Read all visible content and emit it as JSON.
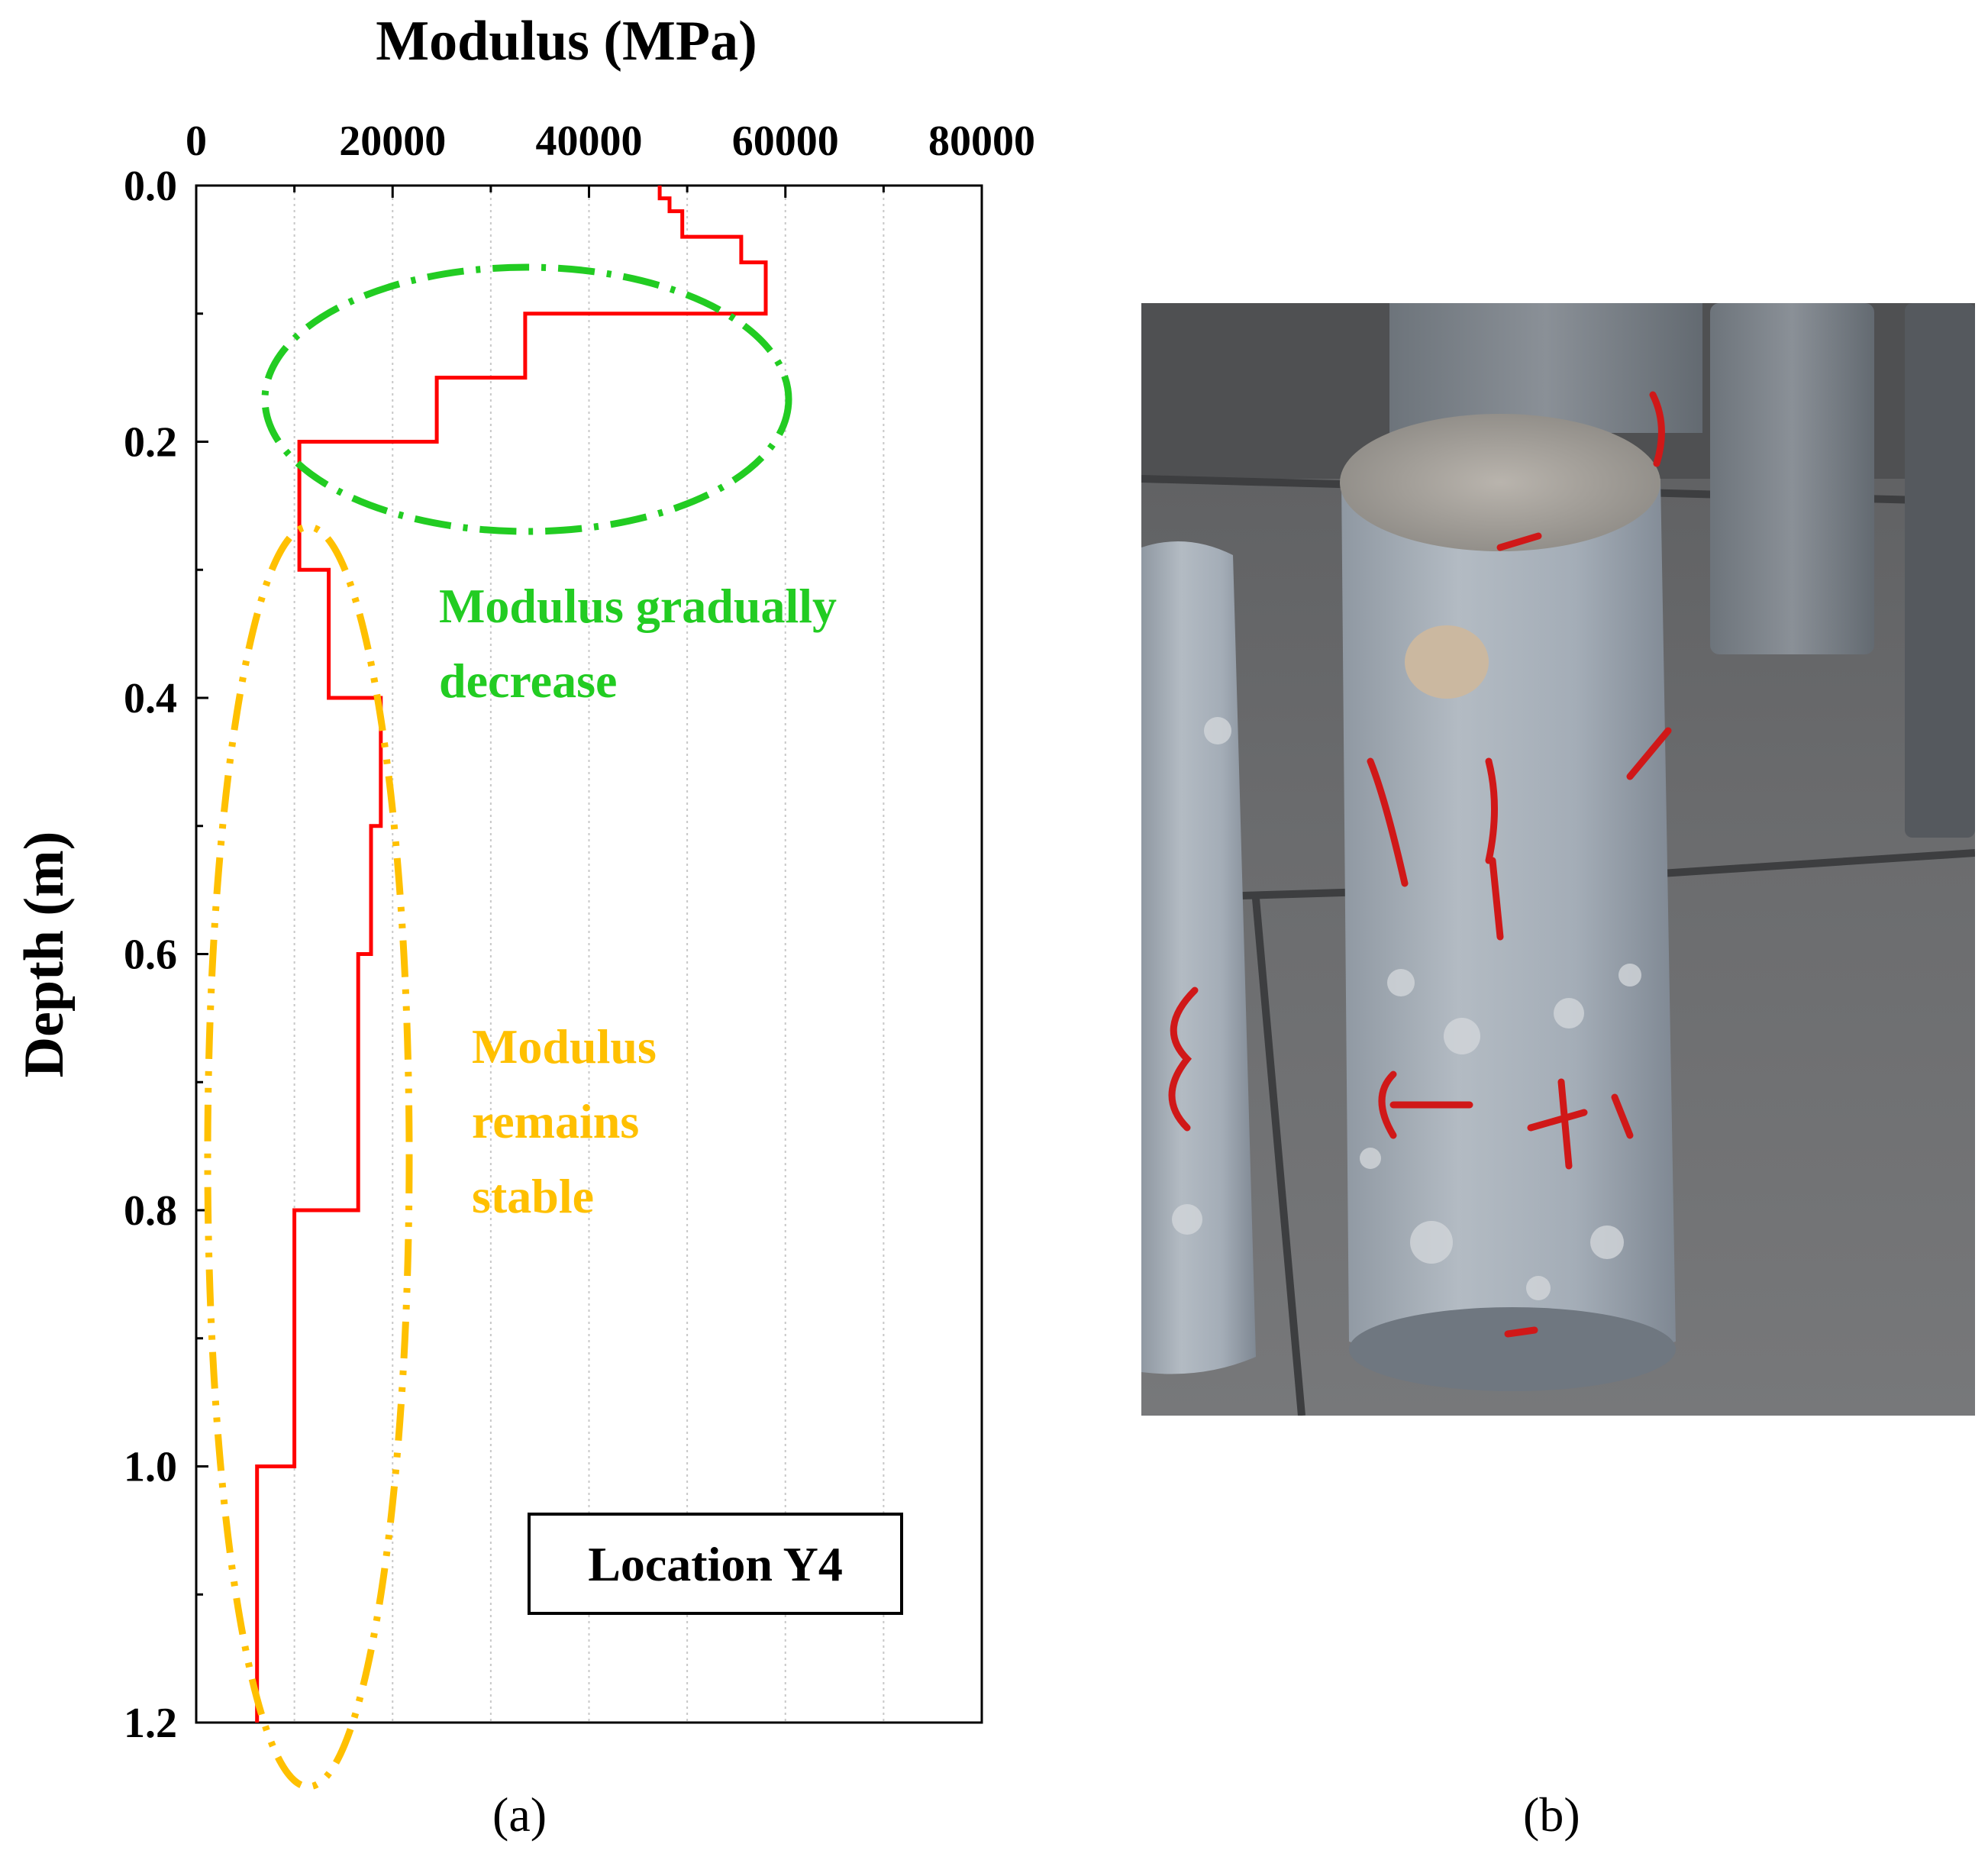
{
  "chart_data": {
    "type": "line",
    "title": "",
    "xlabel": "Modulus (MPa)",
    "ylabel": "Depth (m)",
    "xlim": [
      0,
      80000
    ],
    "ylim": [
      0,
      1.2
    ],
    "y_inverted": true,
    "x_axis_position": "top",
    "x_ticks": [
      "0",
      "20000",
      "40000",
      "60000",
      "80000"
    ],
    "y_ticks": [
      "0.0",
      "0.2",
      "0.4",
      "0.6",
      "0.8",
      "1.0",
      "1.2"
    ],
    "grid": "vertical dotted",
    "line_color": "#ff0000",
    "series": [
      {
        "x": [
          47200,
          47200,
          48200,
          48200,
          49500,
          49500,
          50000,
          50000,
          55500,
          55500,
          58000,
          58000,
          33500,
          33500,
          24500,
          24500,
          10500,
          10500,
          10500,
          10500,
          13500,
          13500,
          18800,
          18800,
          17800,
          17800,
          16500,
          16500,
          10000,
          10000,
          6200,
          6200,
          6200
        ],
        "y": [
          0.0,
          0.01,
          0.01,
          0.02,
          0.02,
          0.04,
          0.04,
          0.04,
          0.04,
          0.06,
          0.06,
          0.1,
          0.1,
          0.15,
          0.15,
          0.2,
          0.2,
          0.22,
          0.22,
          0.3,
          0.3,
          0.4,
          0.4,
          0.5,
          0.5,
          0.6,
          0.6,
          0.8,
          0.8,
          1.0,
          1.0,
          1.08,
          1.2
        ]
      }
    ],
    "annotations": {
      "green_text": [
        "Modulus gradually",
        "decrease"
      ],
      "orange_text": [
        "Modulus",
        "remains",
        "stable"
      ],
      "location_box": "Location Y4"
    },
    "annotation_colors": {
      "green": "#22cc22",
      "orange": "#ffc000"
    },
    "panel_labels": {
      "a": "(a)",
      "b": "(b)"
    }
  }
}
